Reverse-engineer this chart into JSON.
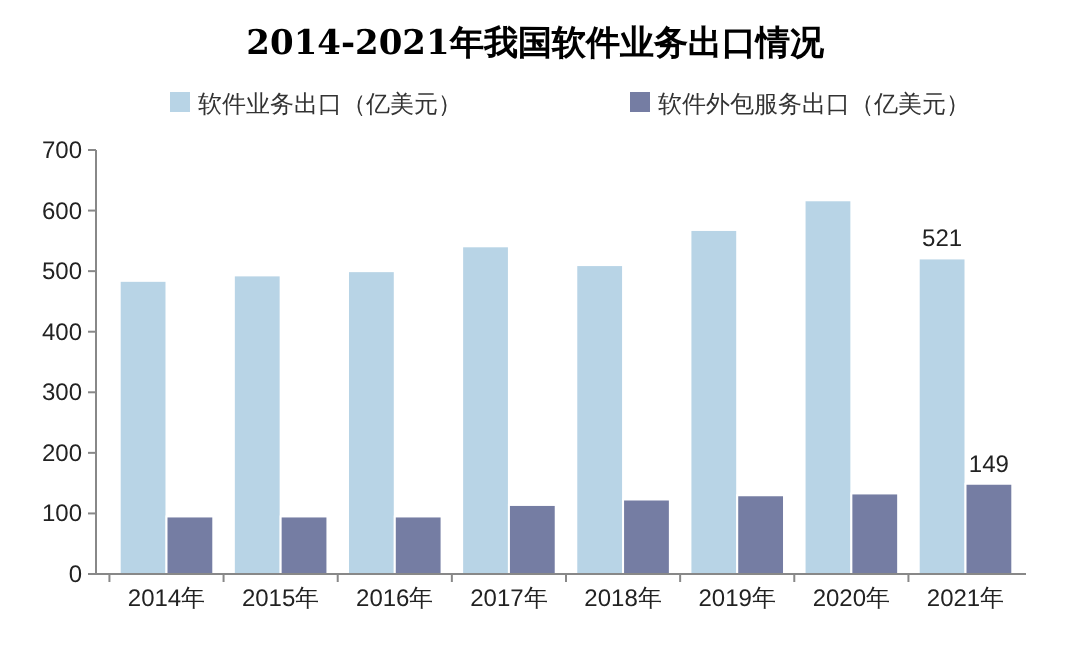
{
  "chart_data": {
    "type": "bar",
    "title": "2014-2021年我国软件业务出口情况",
    "categories": [
      "2014年",
      "2015年",
      "2016年",
      "2017年",
      "2018年",
      "2019年",
      "2020年",
      "2021年"
    ],
    "series": [
      {
        "name": "软件业务出口（亿美元）",
        "color": "#b8d4e6",
        "values": [
          484,
          493,
          500,
          541,
          510,
          568,
          617,
          521
        ],
        "value_labels": [
          null,
          null,
          null,
          null,
          null,
          null,
          null,
          "521"
        ]
      },
      {
        "name": "软件外包服务出口（亿美元）",
        "color": "#757da3",
        "values": [
          95,
          95,
          95,
          114,
          123,
          130,
          133,
          149
        ],
        "value_labels": [
          null,
          null,
          null,
          null,
          null,
          null,
          null,
          "149"
        ]
      }
    ],
    "ylim": [
      0,
      700
    ],
    "yticks": [
      0,
      100,
      200,
      300,
      400,
      500,
      600,
      700
    ],
    "grid": false,
    "legend": "top"
  }
}
